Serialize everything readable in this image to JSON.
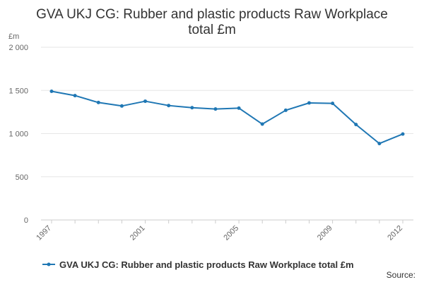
{
  "chart_data": {
    "type": "line",
    "title_line1": "GVA UKJ CG: Rubber and plastic products Raw Workplace",
    "title_line2": "total £m",
    "yunit": "£m",
    "x": [
      1997,
      1998,
      1999,
      2000,
      2001,
      2002,
      2003,
      2004,
      2005,
      2006,
      2007,
      2008,
      2009,
      2010,
      2011,
      2012
    ],
    "x_tick_labels": [
      "1997",
      "2001",
      "2005",
      "2009",
      "2012"
    ],
    "y_tick_labels": [
      "0",
      "500",
      "1 000",
      "1 500",
      "2 000"
    ],
    "y_ticks": [
      0,
      500,
      1000,
      1500,
      2000
    ],
    "ylim": [
      0,
      2000
    ],
    "xlim": [
      1997,
      2012
    ],
    "grid": true,
    "legend_position": "bottom-left",
    "series": [
      {
        "name": "GVA UKJ CG: Rubber and plastic products Raw Workplace total £m",
        "color": "#1f77b4",
        "values": [
          1490,
          1440,
          1360,
          1320,
          1375,
          1325,
          1300,
          1285,
          1295,
          1110,
          1270,
          1355,
          1350,
          1105,
          885,
          995
        ]
      }
    ],
    "source_label": "Source:"
  }
}
